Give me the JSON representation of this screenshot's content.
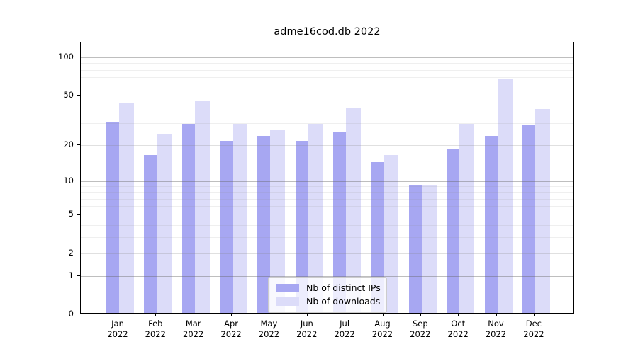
{
  "figure": {
    "title": "adme16cod.db 2022"
  },
  "chart_data": {
    "type": "bar",
    "title": "adme16cod.db 2022",
    "categories": [
      "Jan",
      "Feb",
      "Mar",
      "Apr",
      "May",
      "Jun",
      "Jul",
      "Aug",
      "Sep",
      "Oct",
      "Nov",
      "Dec"
    ],
    "category_year": "2022",
    "series": [
      {
        "name": "Nb of distinct IPs",
        "color": "#a7a7f2",
        "values": [
          30,
          16,
          29,
          21,
          23,
          21,
          25,
          14,
          9,
          18,
          23,
          28
        ]
      },
      {
        "name": "Nb of downloads",
        "color": "#dcdcf9",
        "values": [
          43,
          24,
          44,
          29,
          26,
          29,
          39,
          16,
          9,
          29,
          66,
          38
        ]
      }
    ],
    "xlabel": "",
    "ylabel": "",
    "yscale": "log10(value+1)",
    "yticks": [
      0,
      1,
      2,
      5,
      10,
      20,
      50,
      100
    ],
    "decade_gridlines": [
      1,
      10,
      100
    ],
    "minor_gridlines": [
      2,
      3,
      4,
      5,
      6,
      7,
      8,
      9,
      20,
      30,
      40,
      50,
      60,
      70,
      80,
      90
    ],
    "ylim_top_value": 131,
    "grid": true,
    "legend_position": "lower center",
    "colors": {
      "spine": "#000000",
      "decade_grid": "#bebebe",
      "mid_grid": "#e0e0e0",
      "minor_grid": "#efefef",
      "legend_border": "#cccccc"
    }
  }
}
